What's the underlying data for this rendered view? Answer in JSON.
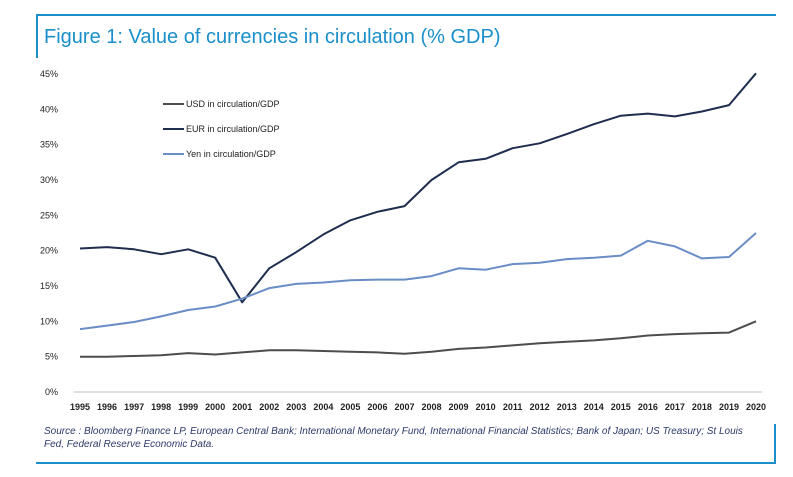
{
  "title": "Figure 1: Value of currencies in circulation (% GDP)",
  "source": "Source : Bloomberg Finance LP, European Central Bank; International Monetary Fund, International Financial Statistics; Bank of Japan; US Treasury; St Louis Fed, Federal Reserve Economic Data.",
  "colors": {
    "accent": "#1a8fc9",
    "usd": "#4d4d4d",
    "eur": "#1f2d4f",
    "yen": "#6a8dc6"
  },
  "chart_data": {
    "type": "line",
    "title": "Figure 1: Value of currencies in circulation (% GDP)",
    "xlabel": "",
    "ylabel": "",
    "ylim": [
      0,
      45
    ],
    "yticks": [
      0,
      5,
      10,
      15,
      20,
      25,
      30,
      35,
      40,
      45
    ],
    "ytick_labels": [
      "0%",
      "5%",
      "10%",
      "15%",
      "20%",
      "25%",
      "30%",
      "35%",
      "40%",
      "45%"
    ],
    "x": [
      "1995",
      "1996",
      "1997",
      "1998",
      "1999",
      "2000",
      "2001",
      "2002",
      "2003",
      "2004",
      "2005",
      "2006",
      "2007",
      "2008",
      "2009",
      "2010",
      "2011",
      "2012",
      "2013",
      "2014",
      "2015",
      "2016",
      "2017",
      "2018",
      "2019",
      "2020"
    ],
    "series": [
      {
        "name": "USD in circulation/GDP",
        "color": "#4d4d4d",
        "values": [
          5.0,
          5.0,
          5.1,
          5.2,
          5.5,
          5.3,
          5.6,
          5.9,
          5.9,
          5.8,
          5.7,
          5.6,
          5.4,
          5.7,
          6.1,
          6.3,
          6.6,
          6.9,
          7.1,
          7.3,
          7.6,
          8.0,
          8.2,
          8.3,
          8.4,
          10.0
        ]
      },
      {
        "name": "EUR in circulation/GDP",
        "color": "#1f2d4f",
        "values": [
          20.3,
          20.5,
          20.2,
          19.5,
          20.2,
          19.0,
          12.7,
          17.5,
          19.8,
          22.3,
          24.3,
          25.5,
          26.3,
          30.0,
          32.5,
          33.0,
          34.5,
          35.2,
          36.5,
          37.9,
          39.1,
          39.4,
          39.0,
          39.7,
          40.6,
          45.1
        ]
      },
      {
        "name": "Yen in circulation/GDP",
        "color": "#6a8dc6",
        "values": [
          8.9,
          9.4,
          9.9,
          10.7,
          11.6,
          12.1,
          13.2,
          14.7,
          15.3,
          15.5,
          15.8,
          15.9,
          15.9,
          16.4,
          17.5,
          17.3,
          18.1,
          18.3,
          18.8,
          19.0,
          19.3,
          21.4,
          20.6,
          18.9,
          19.1,
          22.5
        ]
      }
    ],
    "legend_position": "top-left"
  }
}
